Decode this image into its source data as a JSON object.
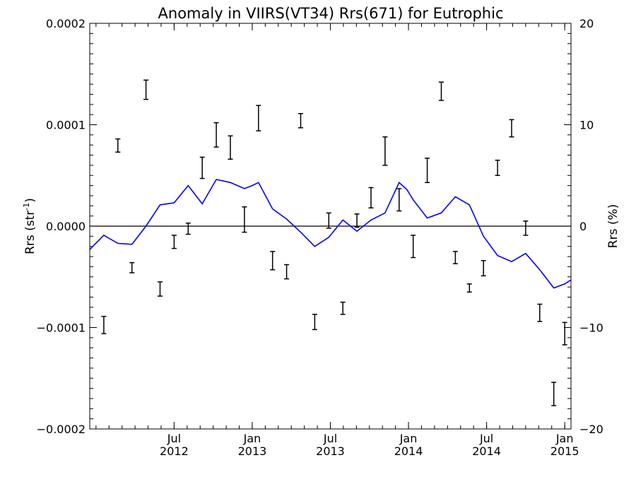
{
  "chart_data": {
    "type": "line",
    "title": "Anomaly in VIIRS(VT34) Rrs(671) for Eutrophic",
    "ylabel_left": "Rrs (str",
    "ylabel_left_sup": "-1",
    "ylabel_left_close": ")",
    "ylabel_right": "Rrs (%)",
    "ylim": [
      -0.0002,
      0.0002
    ],
    "ylim_right": [
      -20,
      20
    ],
    "x_time_range": [
      2011.96,
      2015.04
    ],
    "left_ticks": [
      {
        "value": 0.0002,
        "label": "0.0002"
      },
      {
        "value": 0.0001,
        "label": "0.0001"
      },
      {
        "value": 0.0,
        "label": "0.0000"
      },
      {
        "value": -0.0001,
        "label": "−0.0001"
      },
      {
        "value": -0.0002,
        "label": "−0.0002"
      }
    ],
    "right_ticks": [
      {
        "value": 20,
        "label": "20"
      },
      {
        "value": 10,
        "label": "10"
      },
      {
        "value": 0,
        "label": "0"
      },
      {
        "value": -10,
        "label": "−10"
      },
      {
        "value": -20,
        "label": "−20"
      }
    ],
    "x_ticks": [
      {
        "t": 2012.5,
        "month": "Jul",
        "year": "2012"
      },
      {
        "t": 2013.0,
        "month": "Jan",
        "year": "2013"
      },
      {
        "t": 2013.5,
        "month": "Jul",
        "year": "2013"
      },
      {
        "t": 2014.0,
        "month": "Jan",
        "year": "2014"
      },
      {
        "t": 2014.5,
        "month": "Jul",
        "year": "2014"
      },
      {
        "t": 2015.0,
        "month": "Jan",
        "year": "2015"
      }
    ],
    "reference_line": 0,
    "series": [
      {
        "type": "line",
        "color": "#0000ff",
        "x": [
          2011.96,
          2012.05,
          2012.14,
          2012.23,
          2012.32,
          2012.41,
          2012.5,
          2012.59,
          2012.68,
          2012.77,
          2012.86,
          2012.95,
          2013.0,
          2013.04,
          2013.13,
          2013.22,
          2013.31,
          2013.4,
          2013.49,
          2013.58,
          2013.67,
          2013.76,
          2013.85,
          2013.94,
          2013.99,
          2014.03,
          2014.12,
          2014.21,
          2014.3,
          2014.39,
          2014.48,
          2014.57,
          2014.66,
          2014.75,
          2014.84,
          2014.93,
          2015.0,
          2015.04
        ],
        "y": [
          -2.3e-05,
          -9e-06,
          -1.7e-05,
          -1.8e-05,
          0.0,
          2.1e-05,
          2.3e-05,
          4e-05,
          2.2e-05,
          4.6e-05,
          4.3e-05,
          3.7e-05,
          4e-05,
          4.3e-05,
          1.7e-05,
          7e-06,
          -6e-06,
          -2e-05,
          -1.1e-05,
          6e-06,
          -5e-06,
          6e-06,
          1.3e-05,
          4.3e-05,
          3.6e-05,
          2.6e-05,
          8e-06,
          1.3e-05,
          2.9e-05,
          2.1e-05,
          -1e-05,
          -2.9e-05,
          -3.5e-05,
          -2.7e-05,
          -4.3e-05,
          -6.1e-05,
          -5.7e-05,
          -5.3e-05
        ]
      },
      {
        "type": "errorbar",
        "color": "#000000",
        "x": [
          2012.05,
          2012.14,
          2012.23,
          2012.32,
          2012.41,
          2012.5,
          2012.59,
          2012.68,
          2012.77,
          2012.86,
          2012.95,
          2013.04,
          2013.13,
          2013.22,
          2013.31,
          2013.4,
          2013.49,
          2013.58,
          2013.67,
          2013.76,
          2013.85,
          2013.94,
          2014.03,
          2014.12,
          2014.21,
          2014.3,
          2014.39,
          2014.48,
          2014.57,
          2014.66,
          2014.75,
          2014.84,
          2014.93,
          2015.0
        ],
        "low": [
          -0.000106,
          7.3e-05,
          -4.6e-05,
          0.000125,
          -6.9e-05,
          -2.2e-05,
          -8e-06,
          4.7e-05,
          7.8e-05,
          6.6e-05,
          -6e-06,
          9.4e-05,
          -4.3e-05,
          -5.2e-05,
          9.7e-05,
          -0.000102,
          -2e-06,
          -8.7e-05,
          -1e-06,
          1.8e-05,
          6e-05,
          1.5e-05,
          -3.1e-05,
          4.3e-05,
          0.000124,
          -3.7e-05,
          -6.5e-05,
          -4.9e-05,
          5e-05,
          8.8e-05,
          -9e-06,
          -9.4e-05,
          -0.000177,
          -0.000117
        ],
        "high": [
          -8.9e-05,
          8.6e-05,
          -3.6e-05,
          0.000144,
          -5.5e-05,
          -9e-06,
          3e-06,
          6.8e-05,
          0.000102,
          8.9e-05,
          1.9e-05,
          0.000119,
          -2.5e-05,
          -3.8e-05,
          0.000111,
          -8.7e-05,
          1.3e-05,
          -7.5e-05,
          1.2e-05,
          3.8e-05,
          8.8e-05,
          3.7e-05,
          -9e-06,
          6.7e-05,
          0.000142,
          -2.5e-05,
          -5.7e-05,
          -3.4e-05,
          6.5e-05,
          0.000105,
          5e-06,
          -7.7e-05,
          -0.000154,
          -9.5e-05
        ]
      }
    ]
  }
}
